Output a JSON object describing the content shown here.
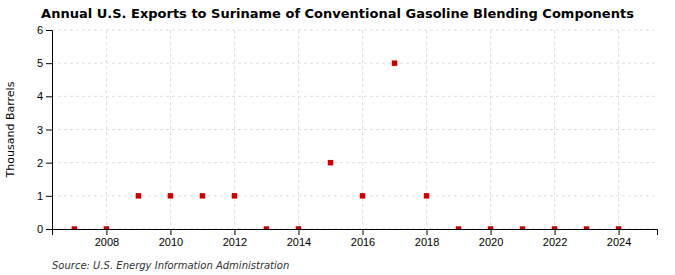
{
  "chart_data": {
    "type": "scatter",
    "title": "Annual U.S. Exports to Suriname of Conventional Gasoline Blending Components",
    "y_label": "Thousand Barrels",
    "annotations": [
      "Source: U.S. Energy Information Administration"
    ],
    "x": [
      2007,
      2008,
      2009,
      2010,
      2011,
      2012,
      2013,
      2014,
      2015,
      2016,
      2017,
      2018,
      2019,
      2020,
      2021,
      2022,
      2023,
      2024
    ],
    "values": [
      0,
      0,
      1,
      1,
      1,
      1,
      0,
      0,
      2,
      1,
      5,
      1,
      0,
      0,
      0,
      0,
      0,
      0
    ],
    "color": "#cc0000",
    "marker": "square",
    "xlim": [
      2006.3,
      2025.2
    ],
    "xticks": [
      2008,
      2010,
      2012,
      2014,
      2016,
      2018,
      2020,
      2022,
      2024
    ],
    "ylim": [
      0,
      6
    ],
    "yticks": [
      0,
      1,
      2,
      3,
      4,
      5,
      6
    ],
    "grid": true
  }
}
